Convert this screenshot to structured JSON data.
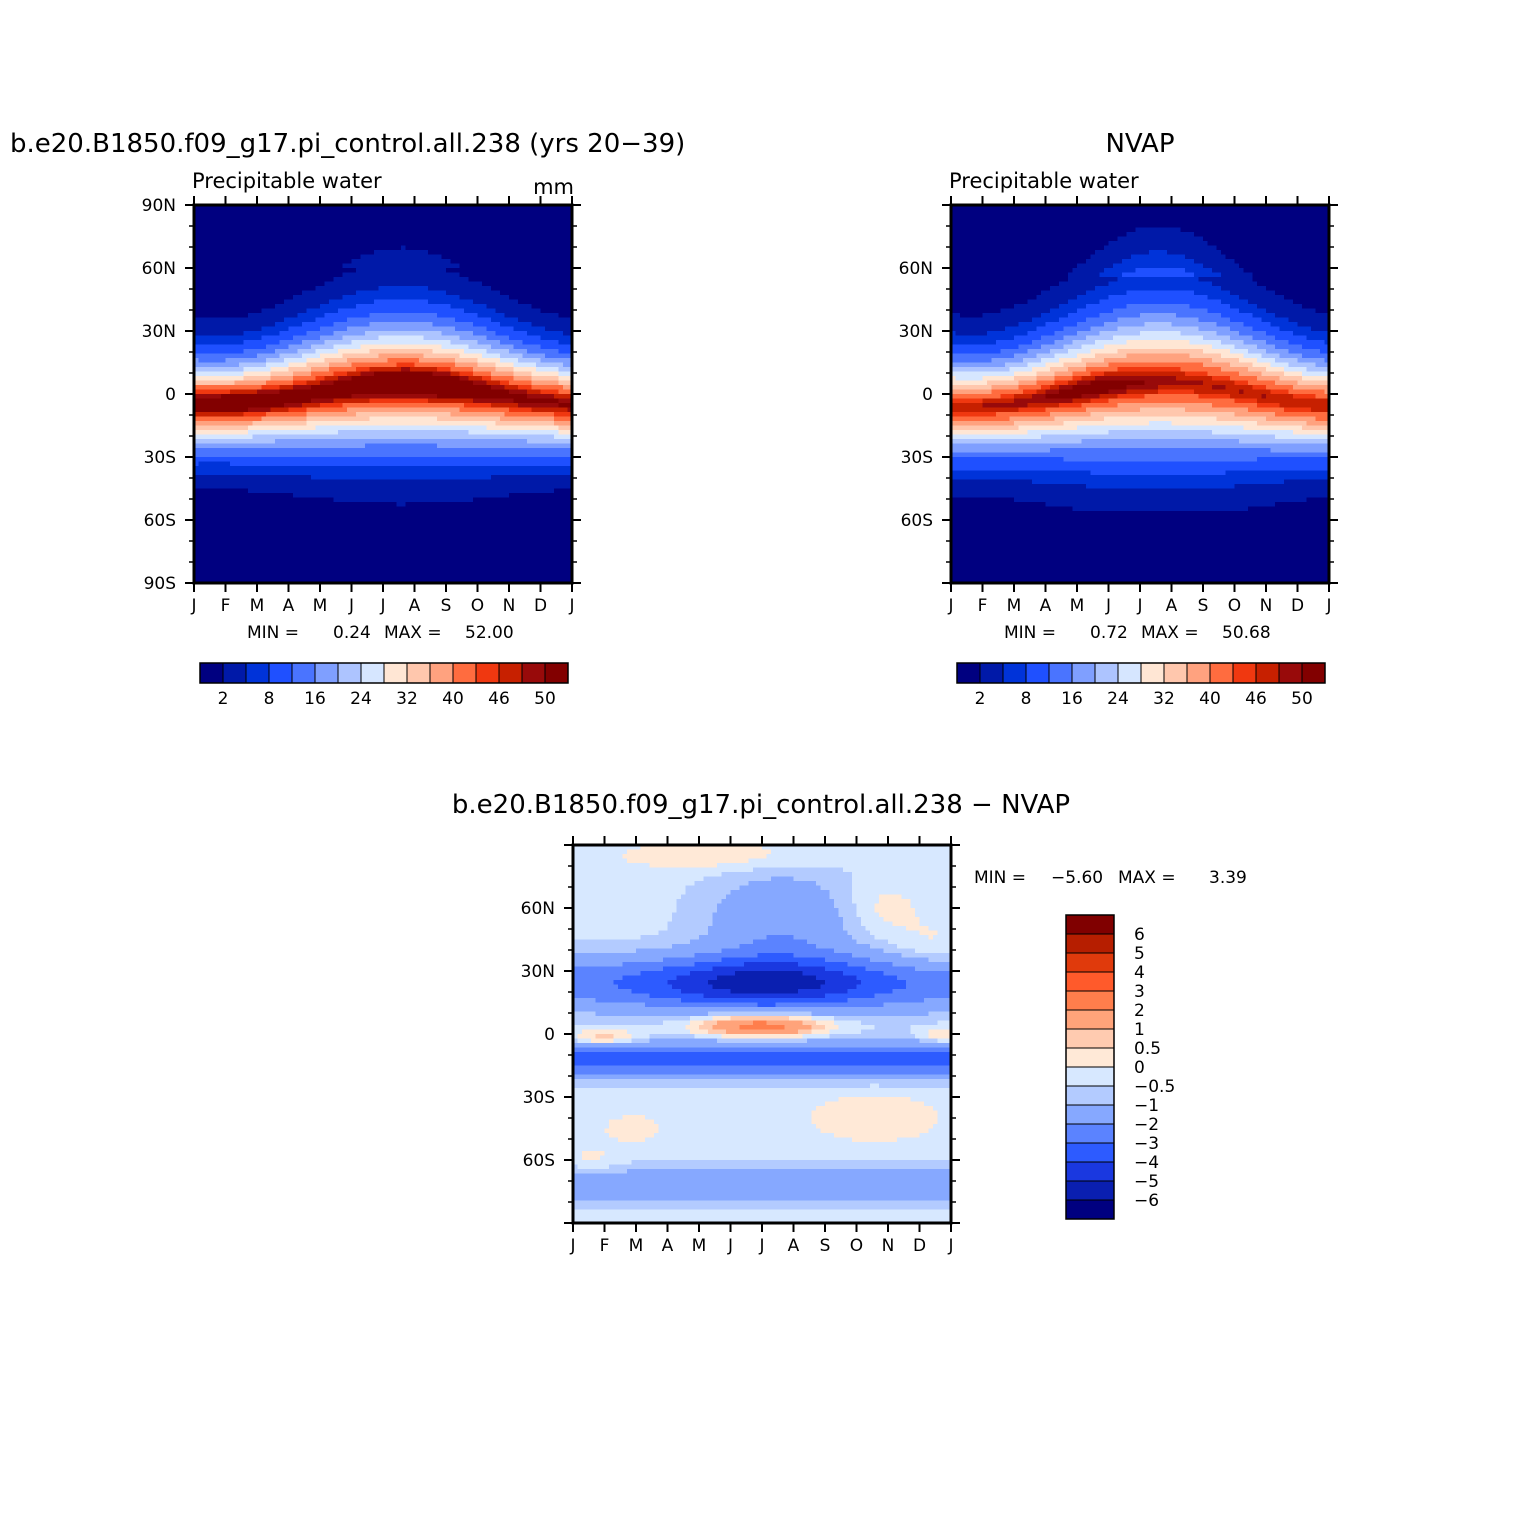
{
  "chart_data": [
    {
      "type": "heatmap",
      "title": "b.e20.B1850.f09_g17.pi_control.all.238 (yrs 20−39)",
      "subtitle": "Precipitable water",
      "units": "mm",
      "x_ticks": [
        "J",
        "F",
        "M",
        "A",
        "M",
        "J",
        "J",
        "A",
        "S",
        "O",
        "N",
        "D",
        "J"
      ],
      "y_ticks": [
        "90N",
        "60N",
        "30N",
        "0",
        "30S",
        "60S",
        "90S"
      ],
      "stats": {
        "min_label": "MIN =",
        "min": "0.24",
        "max_label": "MAX =",
        "max": "52.00"
      },
      "colorbar_labels": [
        "2",
        "8",
        "16",
        "24",
        "32",
        "40",
        "46",
        "50"
      ],
      "colorbar_levels": [
        2,
        5,
        8,
        12,
        16,
        20,
        24,
        28,
        32,
        36,
        40,
        44,
        46,
        48,
        50
      ],
      "description_values": {
        "lat": [
          -90,
          -60,
          -30,
          0,
          30,
          60,
          90
        ],
        "equator_peak_month": "Jul-Aug",
        "max": 52.0,
        "min": 0.24
      }
    },
    {
      "type": "heatmap",
      "title": "NVAP",
      "subtitle": "Precipitable water",
      "units": "",
      "x_ticks": [
        "J",
        "F",
        "M",
        "A",
        "M",
        "J",
        "J",
        "A",
        "S",
        "O",
        "N",
        "D",
        "J"
      ],
      "y_ticks": [
        "60N",
        "30N",
        "0",
        "30S",
        "60S"
      ],
      "stats": {
        "min_label": "MIN =",
        "min": "0.72",
        "max_label": "MAX =",
        "max": "50.68"
      },
      "colorbar_labels": [
        "2",
        "8",
        "16",
        "24",
        "32",
        "40",
        "46",
        "50"
      ],
      "colorbar_levels": [
        2,
        5,
        8,
        12,
        16,
        20,
        24,
        28,
        32,
        36,
        40,
        44,
        46,
        48,
        50
      ],
      "description_values": {
        "max": 50.68,
        "min": 0.72
      }
    },
    {
      "type": "heatmap",
      "title": "b.e20.B1850.f09_g17.pi_control.all.238 − NVAP",
      "x_ticks": [
        "J",
        "F",
        "M",
        "A",
        "M",
        "J",
        "J",
        "A",
        "S",
        "O",
        "N",
        "D",
        "J"
      ],
      "y_ticks": [
        "60N",
        "30N",
        "0",
        "30S",
        "60S"
      ],
      "stats": {
        "min_label": "MIN =",
        "min": "−5.60",
        "max_label": "MAX =",
        "max": "3.39"
      },
      "colorbar_labels": [
        "6",
        "5",
        "4",
        "3",
        "2",
        "1",
        "0.5",
        "0",
        "−0.5",
        "−1",
        "−2",
        "−3",
        "−4",
        "−5",
        "−6"
      ],
      "description_values": {
        "max": 3.39,
        "min": -5.6
      }
    }
  ],
  "colors": {
    "seq": [
      "#000080",
      "#0019a8",
      "#0033d9",
      "#1f50ff",
      "#4a74ff",
      "#7f9fff",
      "#adc4ff",
      "#d6e6ff",
      "#ffe6d4",
      "#ffc7ad",
      "#ffa27f",
      "#ff6c3f",
      "#f03810",
      "#c72000",
      "#980a0a",
      "#820000"
    ],
    "diff": [
      "#800000",
      "#b61e00",
      "#e03a0c",
      "#ff5a2b",
      "#ff7e4c",
      "#ffa37a",
      "#ffcbb0",
      "#ffe9d7",
      "#d7e8ff",
      "#b3cbff",
      "#86a8ff",
      "#5b83ff",
      "#2d5bff",
      "#1a38e0",
      "#0a1fb0",
      "#000080"
    ]
  }
}
